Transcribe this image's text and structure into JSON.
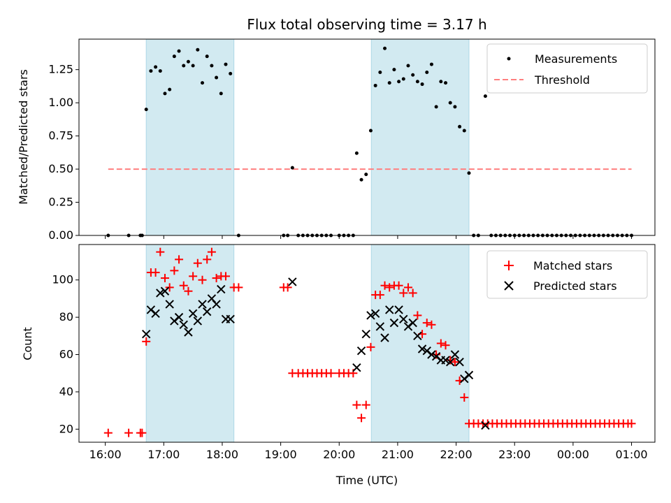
{
  "title": "Flux total observing time = 3.17 h",
  "colors": {
    "shade": "#add8e6",
    "measurement": "#000000",
    "threshold": "#ff7f7f",
    "matched": "#ff0000",
    "predicted": "#000000"
  },
  "chart_data": [
    {
      "type": "scatter",
      "ylabel": "Matched/Predicted stars",
      "xlim": [
        15.55,
        25.4
      ],
      "ylim": [
        0,
        1.48
      ],
      "yticks": [
        0.0,
        0.25,
        0.5,
        0.75,
        1.0,
        1.25
      ],
      "ytick_labels": [
        "0.00",
        "0.25",
        "0.50",
        "0.75",
        "1.00",
        "1.25"
      ],
      "legend_position": "top-right",
      "shaded_intervals": [
        [
          16.7,
          18.2
        ],
        [
          20.55,
          22.22
        ]
      ],
      "threshold": {
        "name": "Threshold",
        "value": 0.5,
        "x_range": [
          16.05,
          25.0
        ]
      },
      "series": [
        {
          "name": "Measurements",
          "points": [
            [
              16.05,
              0
            ],
            [
              16.4,
              0
            ],
            [
              16.6,
              0
            ],
            [
              16.63,
              0
            ],
            [
              16.7,
              0.95
            ],
            [
              16.78,
              1.24
            ],
            [
              16.86,
              1.27
            ],
            [
              16.94,
              1.24
            ],
            [
              17.02,
              1.07
            ],
            [
              17.1,
              1.1
            ],
            [
              17.18,
              1.35
            ],
            [
              17.26,
              1.39
            ],
            [
              17.34,
              1.28
            ],
            [
              17.42,
              1.31
            ],
            [
              17.5,
              1.28
            ],
            [
              17.58,
              1.4
            ],
            [
              17.66,
              1.15
            ],
            [
              17.74,
              1.35
            ],
            [
              17.82,
              1.28
            ],
            [
              17.9,
              1.19
            ],
            [
              17.98,
              1.07
            ],
            [
              18.06,
              1.29
            ],
            [
              18.14,
              1.22
            ],
            [
              18.28,
              0
            ],
            [
              19.05,
              0
            ],
            [
              19.12,
              0
            ],
            [
              19.2,
              0.51
            ],
            [
              19.3,
              0
            ],
            [
              19.38,
              0
            ],
            [
              19.46,
              0
            ],
            [
              19.54,
              0
            ],
            [
              19.62,
              0
            ],
            [
              19.7,
              0
            ],
            [
              19.78,
              0
            ],
            [
              19.86,
              0
            ],
            [
              20.0,
              0
            ],
            [
              20.08,
              0
            ],
            [
              20.16,
              0
            ],
            [
              20.24,
              0
            ],
            [
              20.3,
              0.62
            ],
            [
              20.38,
              0.42
            ],
            [
              20.46,
              0.46
            ],
            [
              20.54,
              0.79
            ],
            [
              20.62,
              1.13
            ],
            [
              20.7,
              1.23
            ],
            [
              20.78,
              1.41
            ],
            [
              20.86,
              1.15
            ],
            [
              20.94,
              1.25
            ],
            [
              21.02,
              1.16
            ],
            [
              21.1,
              1.18
            ],
            [
              21.18,
              1.28
            ],
            [
              21.26,
              1.21
            ],
            [
              21.34,
              1.16
            ],
            [
              21.42,
              1.14
            ],
            [
              21.5,
              1.23
            ],
            [
              21.58,
              1.29
            ],
            [
              21.66,
              0.97
            ],
            [
              21.74,
              1.16
            ],
            [
              21.82,
              1.15
            ],
            [
              21.9,
              1.0
            ],
            [
              21.98,
              0.97
            ],
            [
              22.06,
              0.82
            ],
            [
              22.14,
              0.79
            ],
            [
              22.22,
              0.47
            ],
            [
              22.3,
              0
            ],
            [
              22.38,
              0
            ],
            [
              22.5,
              1.05
            ],
            [
              22.6,
              0
            ],
            [
              22.68,
              0
            ],
            [
              22.76,
              0
            ],
            [
              22.84,
              0
            ],
            [
              22.92,
              0
            ],
            [
              23.0,
              0
            ],
            [
              23.08,
              0
            ],
            [
              23.16,
              0
            ],
            [
              23.24,
              0
            ],
            [
              23.32,
              0
            ],
            [
              23.4,
              0
            ],
            [
              23.48,
              0
            ],
            [
              23.56,
              0
            ],
            [
              23.64,
              0
            ],
            [
              23.72,
              0
            ],
            [
              23.8,
              0
            ],
            [
              23.88,
              0
            ],
            [
              23.96,
              0
            ],
            [
              24.04,
              0
            ],
            [
              24.12,
              0
            ],
            [
              24.2,
              0
            ],
            [
              24.28,
              0
            ],
            [
              24.36,
              0
            ],
            [
              24.44,
              0
            ],
            [
              24.52,
              0
            ],
            [
              24.6,
              0
            ],
            [
              24.68,
              0
            ],
            [
              24.76,
              0
            ],
            [
              24.84,
              0
            ],
            [
              24.92,
              0
            ],
            [
              25.0,
              0
            ]
          ]
        }
      ]
    },
    {
      "type": "scatter",
      "ylabel": "Count",
      "xlabel": "Time (UTC)",
      "xlim": [
        15.55,
        25.4
      ],
      "ylim": [
        13,
        119
      ],
      "yticks": [
        20,
        40,
        60,
        80,
        100
      ],
      "ytick_labels": [
        "20",
        "40",
        "60",
        "80",
        "100"
      ],
      "xticks": [
        16,
        17,
        18,
        19,
        20,
        21,
        22,
        23,
        24,
        25
      ],
      "xtick_labels": [
        "16:00",
        "17:00",
        "18:00",
        "19:00",
        "20:00",
        "21:00",
        "22:00",
        "23:00",
        "00:00",
        "01:00"
      ],
      "legend_position": "top-right",
      "shaded_intervals": [
        [
          16.7,
          18.2
        ],
        [
          20.55,
          22.22
        ]
      ],
      "series": [
        {
          "name": "Matched stars",
          "points": [
            [
              16.05,
              18
            ],
            [
              16.4,
              18
            ],
            [
              16.6,
              18
            ],
            [
              16.63,
              18
            ],
            [
              16.7,
              67
            ],
            [
              16.78,
              104
            ],
            [
              16.86,
              104
            ],
            [
              16.94,
              115
            ],
            [
              17.02,
              101
            ],
            [
              17.1,
              96
            ],
            [
              17.18,
              105
            ],
            [
              17.26,
              111
            ],
            [
              17.34,
              97
            ],
            [
              17.42,
              94
            ],
            [
              17.5,
              102
            ],
            [
              17.58,
              109
            ],
            [
              17.66,
              100
            ],
            [
              17.74,
              111
            ],
            [
              17.82,
              115
            ],
            [
              17.9,
              101
            ],
            [
              17.98,
              102
            ],
            [
              18.06,
              102
            ],
            [
              18.2,
              96
            ],
            [
              18.28,
              96
            ],
            [
              19.05,
              96
            ],
            [
              19.12,
              96
            ],
            [
              19.2,
              50
            ],
            [
              19.3,
              50
            ],
            [
              19.38,
              50
            ],
            [
              19.46,
              50
            ],
            [
              19.54,
              50
            ],
            [
              19.62,
              50
            ],
            [
              19.7,
              50
            ],
            [
              19.78,
              50
            ],
            [
              19.86,
              50
            ],
            [
              20.0,
              50
            ],
            [
              20.08,
              50
            ],
            [
              20.16,
              50
            ],
            [
              20.24,
              50
            ],
            [
              20.3,
              33
            ],
            [
              20.38,
              26
            ],
            [
              20.46,
              33
            ],
            [
              20.54,
              64
            ],
            [
              20.62,
              92
            ],
            [
              20.7,
              92
            ],
            [
              20.78,
              97
            ],
            [
              20.86,
              96
            ],
            [
              20.94,
              97
            ],
            [
              21.02,
              97
            ],
            [
              21.1,
              93
            ],
            [
              21.18,
              96
            ],
            [
              21.26,
              93
            ],
            [
              21.34,
              81
            ],
            [
              21.42,
              71
            ],
            [
              21.5,
              77
            ],
            [
              21.58,
              76
            ],
            [
              21.66,
              60
            ],
            [
              21.74,
              66
            ],
            [
              21.82,
              65
            ],
            [
              21.9,
              57
            ],
            [
              21.98,
              56
            ],
            [
              22.06,
              46
            ],
            [
              22.14,
              37
            ],
            [
              22.22,
              23
            ],
            [
              22.3,
              23
            ],
            [
              22.38,
              23
            ],
            [
              22.46,
              23
            ],
            [
              22.54,
              23
            ],
            [
              22.62,
              23
            ],
            [
              22.7,
              23
            ],
            [
              22.78,
              23
            ],
            [
              22.86,
              23
            ],
            [
              22.94,
              23
            ],
            [
              23.02,
              23
            ],
            [
              23.1,
              23
            ],
            [
              23.18,
              23
            ],
            [
              23.26,
              23
            ],
            [
              23.34,
              23
            ],
            [
              23.42,
              23
            ],
            [
              23.5,
              23
            ],
            [
              23.58,
              23
            ],
            [
              23.66,
              23
            ],
            [
              23.74,
              23
            ],
            [
              23.82,
              23
            ],
            [
              23.9,
              23
            ],
            [
              23.98,
              23
            ],
            [
              24.06,
              23
            ],
            [
              24.14,
              23
            ],
            [
              24.22,
              23
            ],
            [
              24.3,
              23
            ],
            [
              24.38,
              23
            ],
            [
              24.46,
              23
            ],
            [
              24.54,
              23
            ],
            [
              24.62,
              23
            ],
            [
              24.7,
              23
            ],
            [
              24.78,
              23
            ],
            [
              24.86,
              23
            ],
            [
              24.94,
              23
            ],
            [
              25.0,
              23
            ]
          ]
        },
        {
          "name": "Predicted stars",
          "points": [
            [
              16.7,
              71
            ],
            [
              16.78,
              84
            ],
            [
              16.86,
              82
            ],
            [
              16.94,
              93
            ],
            [
              17.02,
              94
            ],
            [
              17.1,
              87
            ],
            [
              17.18,
              78
            ],
            [
              17.26,
              80
            ],
            [
              17.34,
              76
            ],
            [
              17.42,
              72
            ],
            [
              17.5,
              82
            ],
            [
              17.58,
              78
            ],
            [
              17.66,
              87
            ],
            [
              17.74,
              83
            ],
            [
              17.82,
              90
            ],
            [
              17.9,
              87
            ],
            [
              17.98,
              95
            ],
            [
              18.06,
              79
            ],
            [
              18.14,
              79
            ],
            [
              19.2,
              99
            ],
            [
              20.3,
              53
            ],
            [
              20.38,
              62
            ],
            [
              20.46,
              71
            ],
            [
              20.54,
              81
            ],
            [
              20.62,
              82
            ],
            [
              20.7,
              75
            ],
            [
              20.78,
              69
            ],
            [
              20.86,
              84
            ],
            [
              20.94,
              77
            ],
            [
              21.02,
              84
            ],
            [
              21.1,
              79
            ],
            [
              21.18,
              75
            ],
            [
              21.26,
              77
            ],
            [
              21.34,
              70
            ],
            [
              21.42,
              63
            ],
            [
              21.5,
              62
            ],
            [
              21.58,
              60
            ],
            [
              21.66,
              59
            ],
            [
              21.74,
              57
            ],
            [
              21.82,
              57
            ],
            [
              21.9,
              56
            ],
            [
              21.98,
              60
            ],
            [
              22.06,
              56
            ],
            [
              22.14,
              47
            ],
            [
              22.22,
              49
            ],
            [
              22.5,
              22
            ]
          ]
        }
      ]
    }
  ]
}
